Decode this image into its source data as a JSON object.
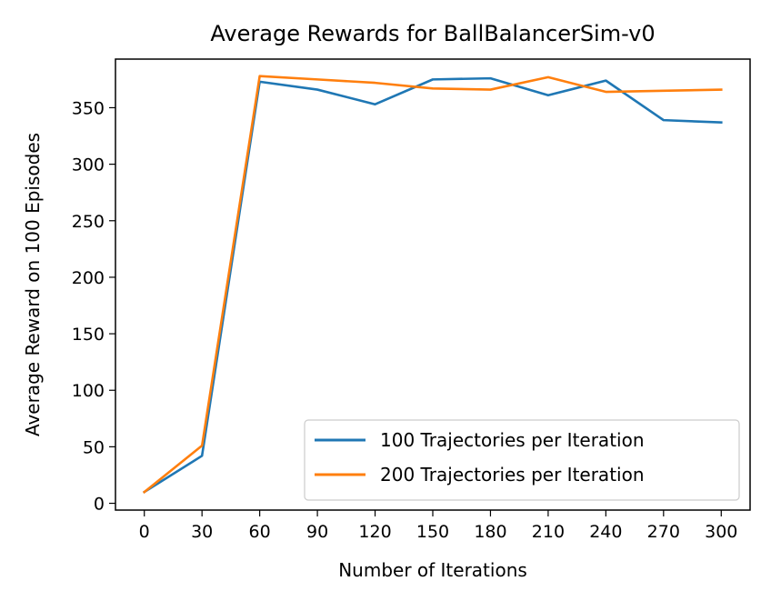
{
  "chart_data": {
    "type": "line",
    "title": "Average Rewards for BallBalancerSim-v0",
    "xlabel": "Number of Iterations",
    "ylabel": "Average Reward on 100 Episodes",
    "x": [
      0,
      30,
      60,
      90,
      120,
      150,
      180,
      210,
      240,
      270,
      300
    ],
    "xticks": [
      0,
      30,
      60,
      90,
      120,
      150,
      180,
      210,
      240,
      270,
      300
    ],
    "yticks": [
      0,
      50,
      100,
      150,
      200,
      250,
      300,
      350
    ],
    "xlim": [
      -15,
      315
    ],
    "ylim": [
      -6,
      393
    ],
    "grid": false,
    "legend_position": "lower-right",
    "series": [
      {
        "name": "100 Trajectories per Iteration",
        "color": "#1f77b4",
        "values": [
          10,
          42,
          373,
          366,
          353,
          375,
          376,
          361,
          374,
          339,
          337
        ]
      },
      {
        "name": "200 Trajectories per Iteration",
        "color": "#ff7f0e",
        "values": [
          10,
          51,
          378,
          375,
          372,
          367,
          366,
          377,
          364,
          365,
          366
        ]
      }
    ]
  }
}
